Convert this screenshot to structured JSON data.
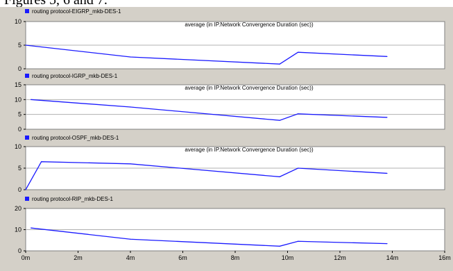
{
  "caption": "Figures 5, 6 and 7.",
  "chart_data": [
    {
      "type": "line",
      "legend": "routing protocol-EIGRP_mkb-DES-1",
      "title": "average (in IP.Network Convergence Duration (sec))",
      "ylim": [
        0,
        10
      ],
      "yticks": [
        "0",
        "5",
        "10"
      ],
      "yticks_values": [
        0,
        5,
        10
      ],
      "series": [
        {
          "name": "routing protocol-EIGRP_mkb-DES-1",
          "color": "#1a1aff",
          "x_minutes": [
            0,
            4.0,
            9.7,
            10.4,
            13.8
          ],
          "y": [
            5.0,
            2.5,
            1.0,
            3.5,
            2.6
          ]
        }
      ]
    },
    {
      "type": "line",
      "legend": "routing protocol-IGRP_mkb-DES-1",
      "title": "average (in IP.Network Convergence Duration (sec))",
      "ylim": [
        0,
        15
      ],
      "yticks": [
        "0",
        "5",
        "10",
        "15"
      ],
      "yticks_values": [
        0,
        5,
        10,
        15
      ],
      "series": [
        {
          "name": "routing protocol-IGRP_mkb-DES-1",
          "color": "#1a1aff",
          "x_minutes": [
            0.2,
            4.0,
            9.7,
            10.4,
            13.8
          ],
          "y": [
            10.0,
            7.5,
            3.0,
            5.2,
            4.0
          ]
        }
      ]
    },
    {
      "type": "line",
      "legend": "routing protocol-OSPF_mkb-DES-1",
      "title": "average (in IP.Network Convergence Duration (sec))",
      "ylim": [
        0,
        10
      ],
      "yticks": [
        "0",
        "5",
        "10"
      ],
      "yticks_values": [
        0,
        5,
        10
      ],
      "series": [
        {
          "name": "routing protocol-OSPF_mkb-DES-1",
          "color": "#1a1aff",
          "x_minutes": [
            0,
            0.6,
            4.0,
            9.7,
            10.4,
            13.8
          ],
          "y": [
            0,
            6.5,
            6.0,
            3.0,
            5.0,
            3.8
          ]
        }
      ]
    },
    {
      "type": "line",
      "legend": "routing protocol-RIP_mkb-DES-1",
      "title": "",
      "ylim": [
        0,
        20
      ],
      "yticks": [
        "0",
        "10",
        "20"
      ],
      "yticks_values": [
        0,
        10,
        20
      ],
      "series": [
        {
          "name": "routing protocol-RIP_mkb-DES-1",
          "color": "#1a1aff",
          "x_minutes": [
            0.2,
            4.0,
            9.7,
            10.4,
            13.8
          ],
          "y": [
            10.8,
            5.5,
            2.2,
            4.5,
            3.4
          ]
        }
      ]
    }
  ],
  "x_axis": {
    "xlim_minutes": [
      0,
      16
    ],
    "ticks": [
      "0m",
      "2m",
      "4m",
      "6m",
      "8m",
      "10m",
      "12m",
      "14m",
      "16m"
    ],
    "tick_values": [
      0,
      2,
      4,
      6,
      8,
      10,
      12,
      14,
      16
    ]
  },
  "colors": {
    "frame_bg": "#d4d0c8",
    "plot_bg": "#ffffff",
    "grid": "#b0b0b0",
    "line": "#1a1aff",
    "legend_swatch": "#1a1aff"
  }
}
